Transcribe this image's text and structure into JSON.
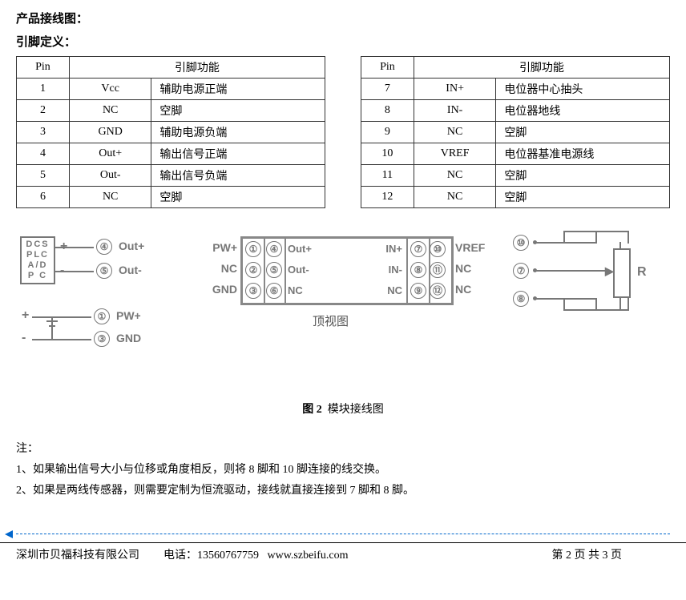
{
  "headings": {
    "wiring": "产品接线图：",
    "pindef": "引脚定义："
  },
  "table": {
    "headers": {
      "pin": "Pin",
      "func": "引脚功能"
    },
    "left": [
      {
        "n": "1",
        "sig": "Vcc",
        "desc": "辅助电源正端"
      },
      {
        "n": "2",
        "sig": "NC",
        "desc": "空脚"
      },
      {
        "n": "3",
        "sig": "GND",
        "desc": "辅助电源负端"
      },
      {
        "n": "4",
        "sig": "Out+",
        "desc": "输出信号正端"
      },
      {
        "n": "5",
        "sig": "Out-",
        "desc": "输出信号负端"
      },
      {
        "n": "6",
        "sig": "NC",
        "desc": "空脚"
      }
    ],
    "right": [
      {
        "n": "7",
        "sig": "IN+",
        "desc": "电位器中心抽头"
      },
      {
        "n": "8",
        "sig": "IN-",
        "desc": "电位器地线"
      },
      {
        "n": "9",
        "sig": "NC",
        "desc": "空脚"
      },
      {
        "n": "10",
        "sig": "VREF",
        "desc": "电位器基准电源线"
      },
      {
        "n": "11",
        "sig": "NC",
        "desc": "空脚"
      },
      {
        "n": "12",
        "sig": "NC",
        "desc": "空脚"
      }
    ]
  },
  "diagram": {
    "dcs_lines": [
      "DCS",
      "PLC",
      "A/D",
      "P C"
    ],
    "left": {
      "out_plus": {
        "num": "④",
        "label": "Out+"
      },
      "out_minus": {
        "num": "⑤",
        "label": "Out-"
      },
      "pw_plus": {
        "num": "①",
        "label": "PW+"
      },
      "gnd": {
        "num": "③",
        "label": "GND"
      }
    },
    "module": {
      "row_labels_left": [
        "PW+",
        "NC",
        "GND"
      ],
      "col1": [
        "①",
        "②",
        "③"
      ],
      "col2": [
        "④",
        "⑤",
        "⑥"
      ],
      "mid_labels_left": [
        "Out+",
        "Out-",
        "NC"
      ],
      "mid_labels_right": [
        "IN+",
        "IN-",
        "NC"
      ],
      "col3": [
        "⑦",
        "⑧",
        "⑨"
      ],
      "col4": [
        "⑩",
        "⑪",
        "⑫"
      ],
      "row_labels_right": [
        "VREF",
        "NC",
        "NC"
      ],
      "caption": "顶视图"
    },
    "resistor": {
      "pins": {
        "p10": "⑩",
        "p7": "⑦",
        "p8": "⑧"
      },
      "label": "R"
    }
  },
  "fig": {
    "num": "图 2",
    "title": "模块接线图"
  },
  "notes": {
    "header": "注：",
    "items": [
      "1、如果输出信号大小与位移或角度相反，则将 8 脚和 10 脚连接的线交换。",
      "2、如果是两线传感器，则需要定制为恒流驱动，接线就直接连接到 7 脚和 8 脚。"
    ]
  },
  "footer": {
    "company": "深圳市贝福科技有限公司",
    "phone_label": "电话：",
    "phone": "13560767759",
    "site": "www.szbeifu.com",
    "page": "第 2 页 共 3 页"
  },
  "style": {
    "line_color": "#777777",
    "text_color": "#000000",
    "border_color": "#333333"
  }
}
